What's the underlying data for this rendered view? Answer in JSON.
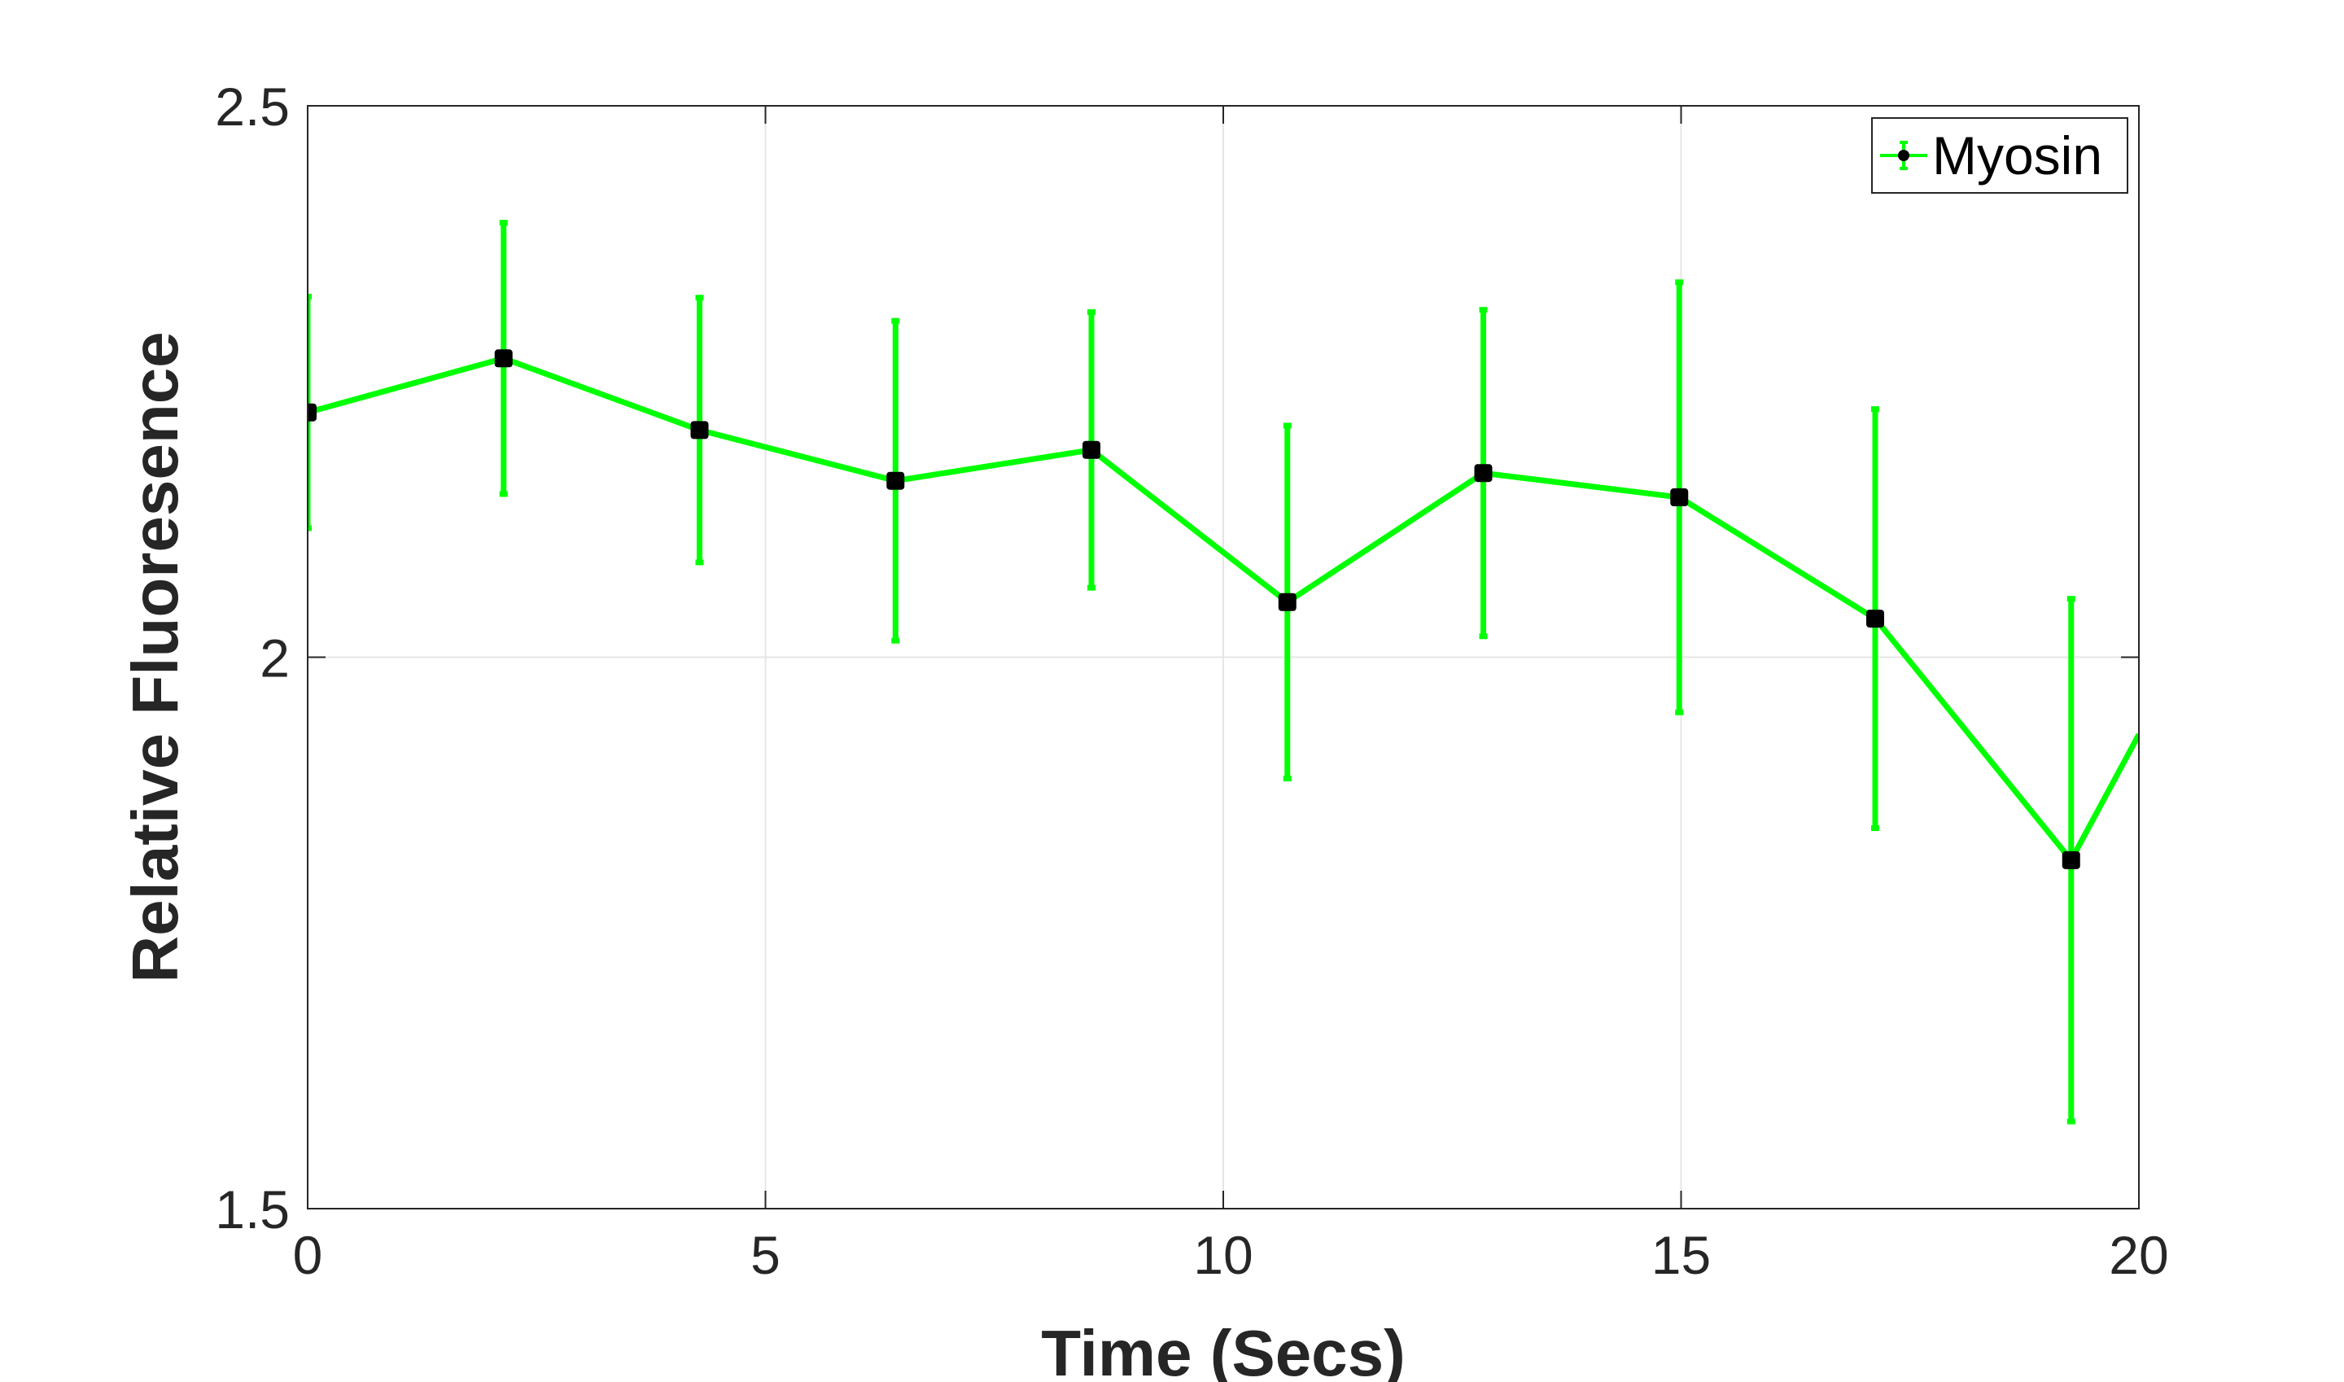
{
  "chart_data": {
    "type": "line",
    "xlabel": "Time (Secs)",
    "ylabel": "Relative Fluoresence",
    "xlim": [
      0,
      20
    ],
    "ylim": [
      1.5,
      2.5
    ],
    "xticks": [
      "0",
      "5",
      "10",
      "15",
      "20"
    ],
    "yticks": [
      "1.5",
      "2",
      "2.5"
    ],
    "grid": true,
    "legend_position": "top-right",
    "series": [
      {
        "name": "Myosin",
        "color": "#00ff00",
        "marker_color": "#000000",
        "x": [
          0,
          2.14,
          4.28,
          6.42,
          8.56,
          10.7,
          12.84,
          14.98,
          17.12,
          19.26
        ],
        "y": [
          2.222,
          2.271,
          2.206,
          2.16,
          2.188,
          2.05,
          2.167,
          2.145,
          2.035,
          1.816
        ],
        "error": [
          0.105,
          0.123,
          0.12,
          0.145,
          0.125,
          0.16,
          0.148,
          0.195,
          0.19,
          0.237
        ],
        "extension_to": {
          "x": 20,
          "y": 1.93
        }
      }
    ]
  }
}
